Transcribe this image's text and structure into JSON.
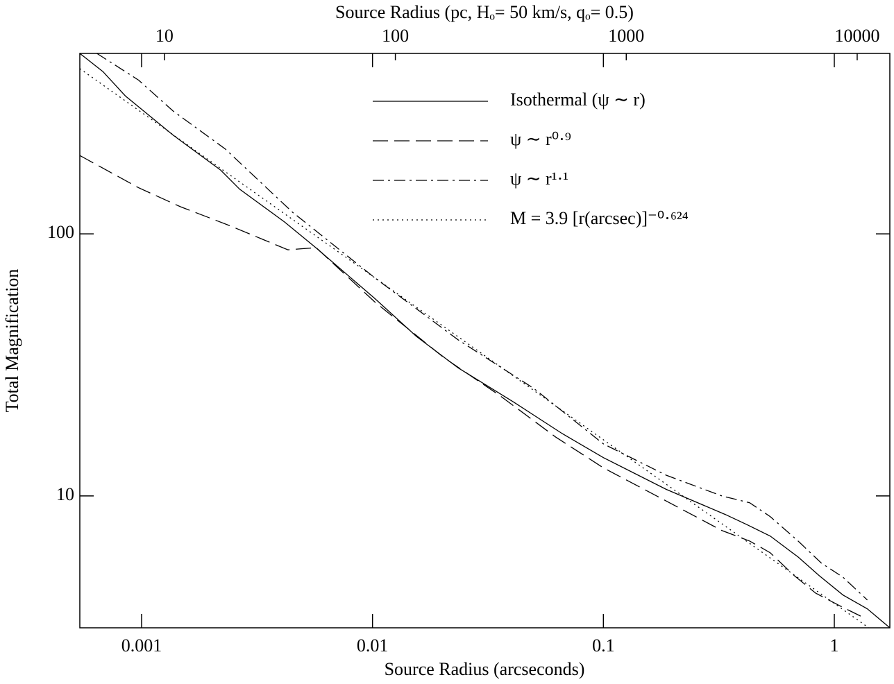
{
  "chart_data": {
    "type": "line",
    "xlabel": "Source Radius (arcseconds)",
    "x2label": "Source Radius (pc, Hₒ= 50 km/s,  qₒ= 0.5)",
    "ylabel": "Total Magnification",
    "xscale": "log",
    "yscale": "log",
    "xlim": [
      0.00054,
      1.74
    ],
    "xticks": [
      0.001,
      0.01,
      0.1,
      1
    ],
    "x2lim": [
      4.3,
      13850
    ],
    "x2ticks": [
      10,
      100,
      1000,
      10000
    ],
    "ylim": [
      3.14,
      488
    ],
    "yticks": [
      10,
      100
    ],
    "legend": "upper right",
    "series": [
      {
        "name": "Isothermal (ψ ∼ r)",
        "color": "#000000",
        "style": "solid",
        "x": [
          0.00054,
          0.00068,
          0.00085,
          0.00137,
          0.0022,
          0.00266,
          0.00416,
          0.00568,
          0.0102,
          0.0155,
          0.0235,
          0.0409,
          0.0663,
          0.1,
          0.187,
          0.337,
          0.415,
          0.528,
          0.697,
          0.859,
          1.09,
          1.39,
          1.74
        ],
        "values": [
          488,
          416,
          336,
          238,
          175,
          148,
          111,
          88.6,
          56.8,
          40.6,
          30.8,
          22.8,
          17.3,
          14,
          10.6,
          8.5,
          7.8,
          7.03,
          5.85,
          4.97,
          4.19,
          3.71,
          3.14
        ]
      },
      {
        "name": "ψ ∼ r⁰·⁹",
        "color": "#000000",
        "style": "dashed",
        "x": [
          0.00054,
          0.00097,
          0.00147,
          0.0024,
          0.0043,
          0.0057,
          0.0102,
          0.0203,
          0.0355,
          0.062,
          0.1,
          0.187,
          0.326,
          0.43,
          0.528,
          0.67,
          0.83,
          1.05,
          1.3
        ],
        "values": [
          199,
          150,
          127,
          107.6,
          86.9,
          88.6,
          55.1,
          33.8,
          24.2,
          16.8,
          12.8,
          9.57,
          7.38,
          6.73,
          6.07,
          4.97,
          4.26,
          3.82,
          3.48
        ]
      },
      {
        "name": "ψ ∼ r¹·¹",
        "color": "#000000",
        "style": "dashdot",
        "x": [
          0.00064,
          0.00097,
          0.00137,
          0.0023,
          0.0045,
          0.0102,
          0.0235,
          0.05,
          0.1,
          0.187,
          0.326,
          0.43,
          0.528,
          0.697,
          0.88,
          1.09,
          1.39
        ],
        "values": [
          488,
          386,
          294,
          211,
          121,
          68.1,
          39.4,
          25.7,
          15.8,
          12,
          10,
          9.42,
          8.34,
          6.73,
          5.54,
          4.9,
          4.01
        ]
      },
      {
        "name": "M = 3.9 [r(arcsec)]⁻⁰·⁶²⁴",
        "color": "#000000",
        "style": "dotted",
        "x": [
          0.00054,
          0.01,
          1.41
        ],
        "values": [
          427,
          69.0,
          3.14
        ]
      }
    ]
  }
}
